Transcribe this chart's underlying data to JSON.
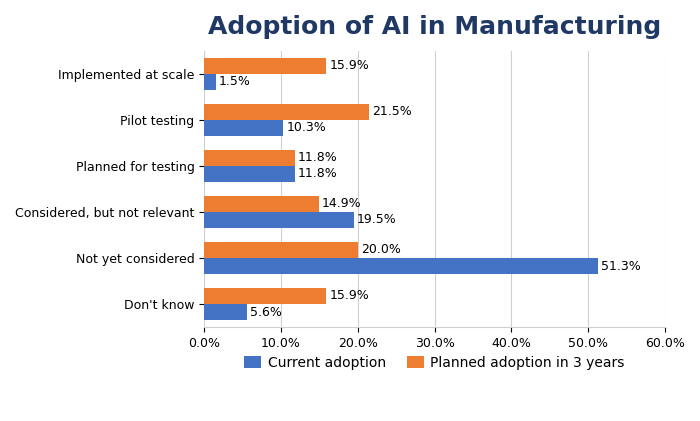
{
  "title": "Adoption of AI in Manufacturing",
  "categories": [
    "Implemented at scale",
    "Pilot testing",
    "Planned for testing",
    "Considered, but not relevant",
    "Not yet considered",
    "Don't know"
  ],
  "current_adoption": [
    1.5,
    10.3,
    11.8,
    19.5,
    51.3,
    5.6
  ],
  "planned_adoption": [
    15.9,
    21.5,
    11.8,
    14.9,
    20.0,
    15.9
  ],
  "current_color": "#4472C4",
  "planned_color": "#ED7D31",
  "legend_labels": [
    "Current adoption",
    "Planned adoption in 3 years"
  ],
  "xlim": [
    0,
    60
  ],
  "xtick_values": [
    0,
    10,
    20,
    30,
    40,
    50,
    60
  ],
  "bar_height": 0.35,
  "background_color": "#FFFFFF",
  "title_color": "#1F3864",
  "title_fontsize": 18,
  "label_fontsize": 9,
  "tick_fontsize": 9,
  "legend_fontsize": 10
}
